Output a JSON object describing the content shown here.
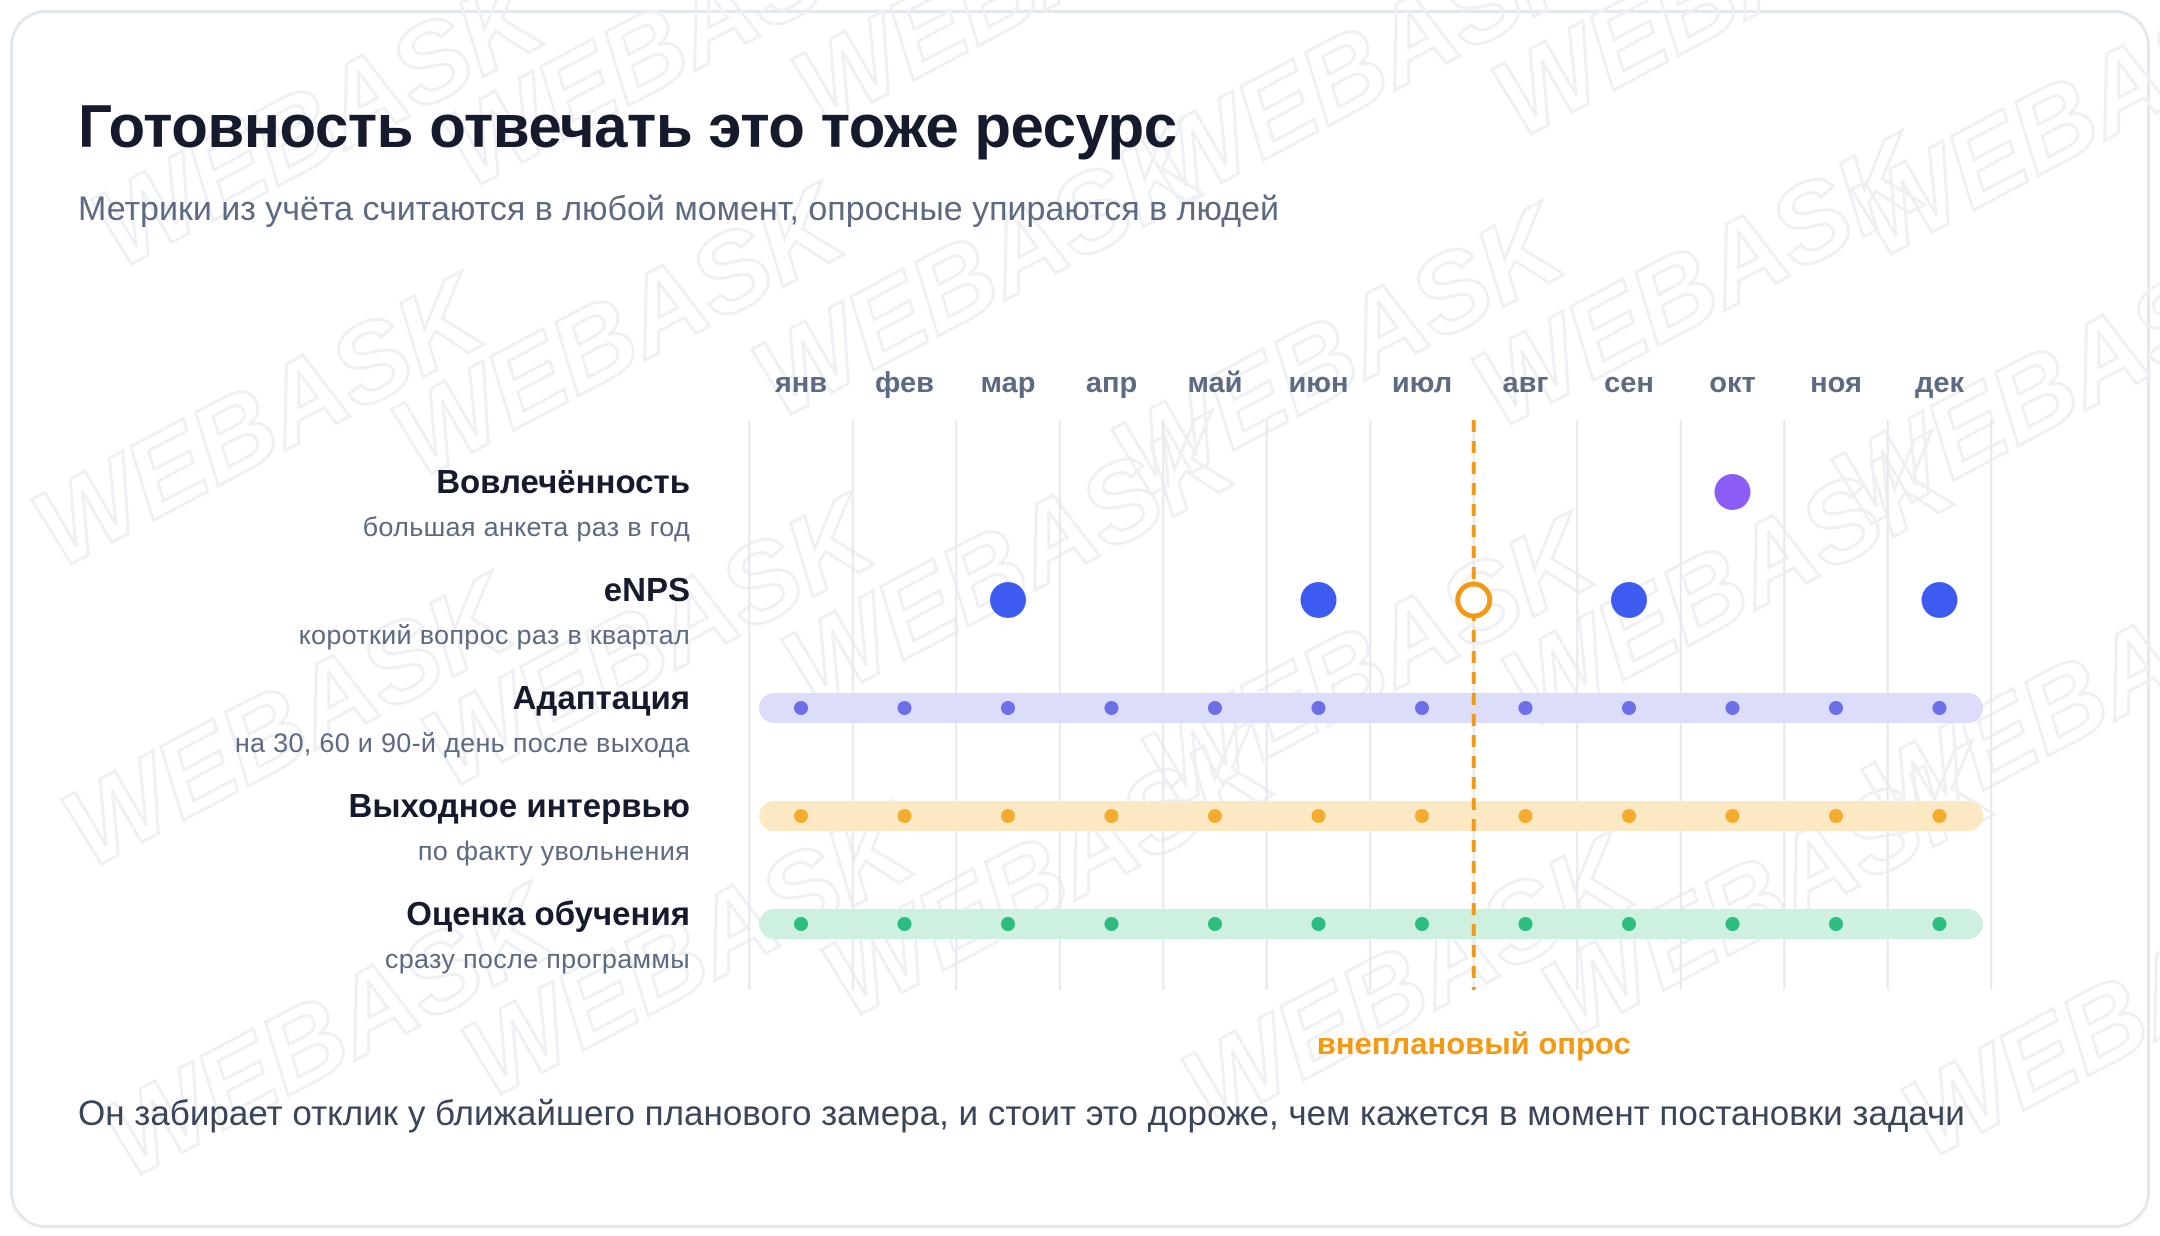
{
  "title": "Готовность отвечать это тоже ресурс",
  "subtitle": "Метрики из учёта считаются в любой момент, опросные упираются в людей",
  "footer": "Он забирает отклик у ближайшего планового замера, и стоит это дороже, чем кажется в момент постановки задачи",
  "watermark_text": "WEBASK",
  "colors": {
    "engagement": "#8b5cf6",
    "enps": "#3d5af1",
    "adaptation": "#6c6fe6",
    "adaptation_band": "#dcdcfb",
    "exit": "#f4ac2e",
    "exit_band": "#fde8c4",
    "training": "#2dbd7e",
    "training_band": "#cdf0df",
    "unplanned": "#f29a16",
    "grid": "#e6e8ee"
  },
  "chart_data": {
    "type": "scatter",
    "x_categories": [
      "янв",
      "фев",
      "мар",
      "апр",
      "май",
      "июн",
      "июл",
      "авг",
      "сен",
      "окт",
      "ноя",
      "дек"
    ],
    "rows": [
      {
        "name": "Вовлечённость",
        "subtitle": "большая анкета раз в год",
        "style": "large-dot",
        "months": [
          10
        ],
        "color_key": "engagement"
      },
      {
        "name": "eNPS",
        "subtitle": "короткий вопрос раз в квартал",
        "style": "large-dot",
        "months": [
          3,
          6,
          9,
          12
        ],
        "color_key": "enps"
      },
      {
        "name": "Адаптация",
        "subtitle": "на 30, 60 и 90-й день после выхода",
        "style": "band",
        "months": [
          1,
          2,
          3,
          4,
          5,
          6,
          7,
          8,
          9,
          10,
          11,
          12
        ],
        "color_key": "adaptation"
      },
      {
        "name": "Выходное интервью",
        "subtitle": "по факту увольнения",
        "style": "band",
        "months": [
          1,
          2,
          3,
          4,
          5,
          6,
          7,
          8,
          9,
          10,
          11,
          12
        ],
        "color_key": "exit"
      },
      {
        "name": "Оценка обучения",
        "subtitle": "сразу после программы",
        "style": "band",
        "months": [
          1,
          2,
          3,
          4,
          5,
          6,
          7,
          8,
          9,
          10,
          11,
          12
        ],
        "color_key": "training"
      }
    ],
    "annotation": {
      "label": "внеплановый опрос",
      "month": 7.5,
      "row": "eNPS"
    }
  }
}
